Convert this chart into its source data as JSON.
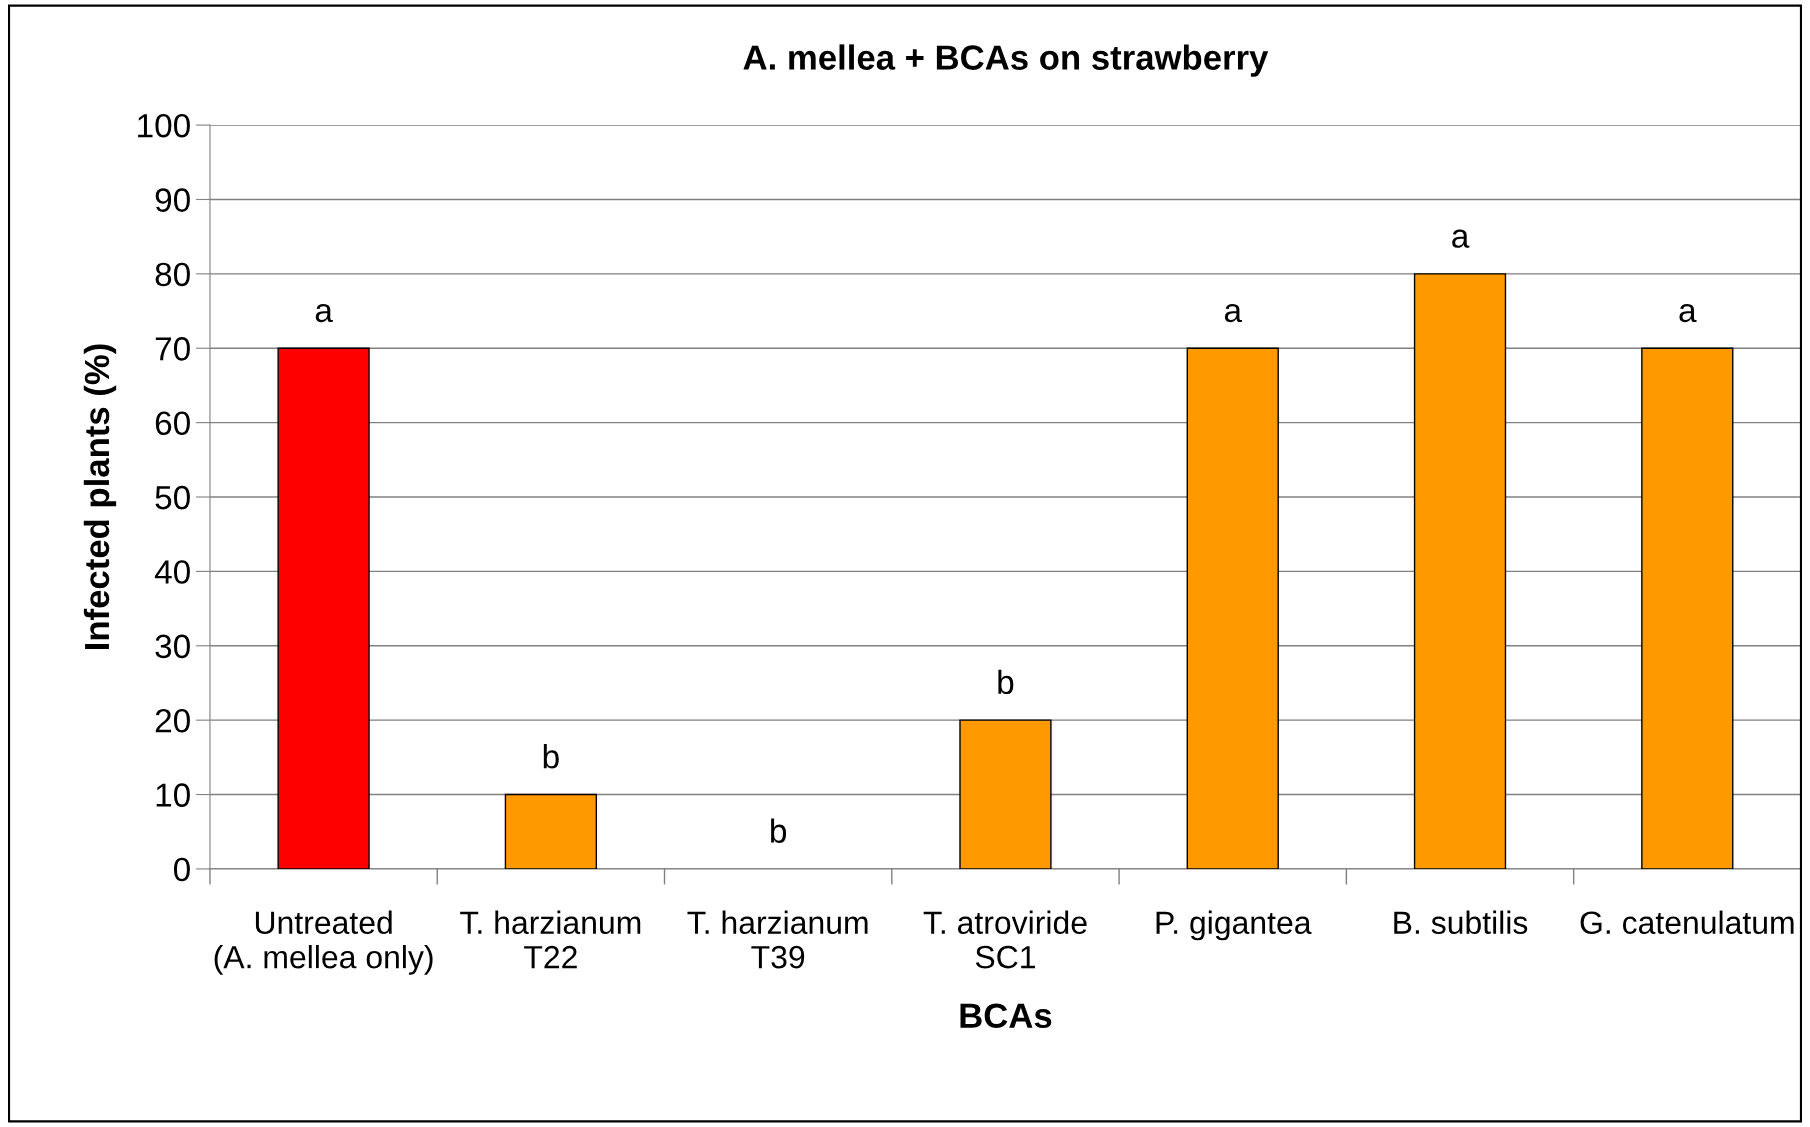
{
  "chart_data": {
    "type": "bar",
    "title": "A. mellea + BCAs on strawberry",
    "xlabel": "BCAs",
    "ylabel": "Infected plants (%)",
    "categories": [
      "Untreated\n(A. mellea only)",
      "T. harzianum\nT22",
      "T. harzianum\nT39",
      "T. atroviride\nSC1",
      "P. gigantea",
      "B. subtilis",
      "G. catenulatum"
    ],
    "values": [
      70,
      10,
      0,
      20,
      70,
      80,
      70
    ],
    "colors": [
      "#ff0000",
      "#ff9900",
      "#ff9900",
      "#ff9900",
      "#ff9900",
      "#ff9900",
      "#ff9900"
    ],
    "value_labels": [
      "a",
      "b",
      "b",
      "b",
      "a",
      "a",
      "a"
    ],
    "ylim": [
      0,
      100
    ],
    "yticks": [
      0,
      10,
      20,
      30,
      40,
      50,
      60,
      70,
      80,
      90,
      100
    ],
    "grid": "y",
    "legend": false
  }
}
